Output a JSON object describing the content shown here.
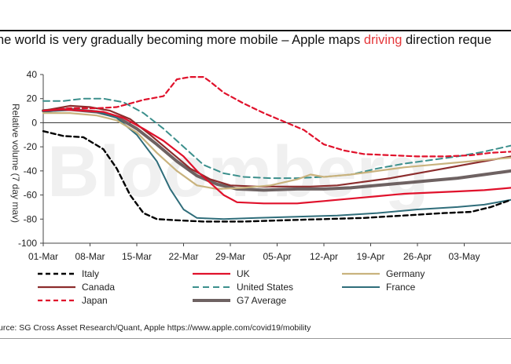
{
  "header": {
    "title_before": "he world is very gradually becoming more mobile – Apple maps ",
    "title_highlight": "driving",
    "title_after": " direction reque"
  },
  "source": "urce: SG Cross Asset Research/Quant, Apple https://www.apple.com/covid19/mobility",
  "watermark": "Bloomberg",
  "colors": {
    "highlight": "#e5383b"
  },
  "chart_data": {
    "type": "line",
    "title": "",
    "ylabel": "Relative volume (7 day mav)",
    "xlabel": "",
    "ylim": [
      -100,
      40
    ],
    "yticks": [
      40,
      20,
      0,
      -20,
      -40,
      -60,
      -80,
      -100
    ],
    "xlim": [
      0,
      70
    ],
    "xticks": [
      {
        "x": 0,
        "label": "01-Mar"
      },
      {
        "x": 7,
        "label": "08-Mar"
      },
      {
        "x": 14,
        "label": "15-Mar"
      },
      {
        "x": 21,
        "label": "22-Mar"
      },
      {
        "x": 28,
        "label": "29-Mar"
      },
      {
        "x": 35,
        "label": "05-Apr"
      },
      {
        "x": 42,
        "label": "12-Apr"
      },
      {
        "x": 49,
        "label": "19-Apr"
      },
      {
        "x": 56,
        "label": "26-Apr"
      },
      {
        "x": 63,
        "label": "03-May"
      }
    ],
    "x_axis_note": "x values are days counted from 01-Mar",
    "series": [
      {
        "name": "Italy",
        "color": "#000000",
        "dash": "6,4",
        "width": 2.4,
        "points": [
          [
            0,
            -7
          ],
          [
            3,
            -11
          ],
          [
            6,
            -12
          ],
          [
            9,
            -22
          ],
          [
            11,
            -38
          ],
          [
            13,
            -60
          ],
          [
            15,
            -75
          ],
          [
            17,
            -80
          ],
          [
            20,
            -81
          ],
          [
            24,
            -82
          ],
          [
            30,
            -82
          ],
          [
            36,
            -81
          ],
          [
            42,
            -80
          ],
          [
            48,
            -79
          ],
          [
            54,
            -77
          ],
          [
            60,
            -75
          ],
          [
            64,
            -74
          ],
          [
            67,
            -70
          ],
          [
            70,
            -64
          ]
        ]
      },
      {
        "name": "UK",
        "color": "#e0112b",
        "dash": "",
        "width": 2.2,
        "points": [
          [
            0,
            10
          ],
          [
            3,
            11
          ],
          [
            6,
            10
          ],
          [
            9,
            9
          ],
          [
            12,
            4
          ],
          [
            15,
            -5
          ],
          [
            18,
            -15
          ],
          [
            21,
            -28
          ],
          [
            23,
            -40
          ],
          [
            25,
            -50
          ],
          [
            27,
            -60
          ],
          [
            29,
            -66
          ],
          [
            33,
            -67
          ],
          [
            38,
            -67
          ],
          [
            42,
            -65
          ],
          [
            46,
            -63
          ],
          [
            50,
            -61
          ],
          [
            54,
            -59
          ],
          [
            58,
            -58
          ],
          [
            62,
            -57
          ],
          [
            66,
            -56
          ],
          [
            70,
            -54
          ]
        ]
      },
      {
        "name": "Germany",
        "color": "#c9b37e",
        "dash": "",
        "width": 2.2,
        "points": [
          [
            0,
            8
          ],
          [
            4,
            8
          ],
          [
            8,
            6
          ],
          [
            11,
            2
          ],
          [
            14,
            -8
          ],
          [
            17,
            -25
          ],
          [
            20,
            -40
          ],
          [
            23,
            -52
          ],
          [
            26,
            -55
          ],
          [
            30,
            -54
          ],
          [
            34,
            -52
          ],
          [
            38,
            -47
          ],
          [
            40,
            -43
          ],
          [
            42,
            -45
          ],
          [
            46,
            -43
          ],
          [
            50,
            -40
          ],
          [
            54,
            -37
          ],
          [
            58,
            -35
          ],
          [
            62,
            -33
          ],
          [
            66,
            -31
          ],
          [
            70,
            -29
          ]
        ]
      },
      {
        "name": "Canada",
        "color": "#8c2d2d",
        "dash": "",
        "width": 2.2,
        "points": [
          [
            0,
            10
          ],
          [
            4,
            14
          ],
          [
            7,
            13
          ],
          [
            10,
            10
          ],
          [
            13,
            3
          ],
          [
            16,
            -10
          ],
          [
            19,
            -24
          ],
          [
            22,
            -38
          ],
          [
            25,
            -47
          ],
          [
            28,
            -52
          ],
          [
            32,
            -53
          ],
          [
            36,
            -53
          ],
          [
            40,
            -53
          ],
          [
            44,
            -52
          ],
          [
            48,
            -49
          ],
          [
            52,
            -46
          ],
          [
            56,
            -42
          ],
          [
            60,
            -38
          ],
          [
            64,
            -34
          ],
          [
            67,
            -31
          ],
          [
            70,
            -28
          ]
        ]
      },
      {
        "name": "United States",
        "color": "#3b8f8c",
        "dash": "8,5",
        "width": 2.0,
        "points": [
          [
            0,
            18
          ],
          [
            3,
            18
          ],
          [
            6,
            20
          ],
          [
            9,
            20
          ],
          [
            12,
            17
          ],
          [
            15,
            8
          ],
          [
            18,
            -5
          ],
          [
            21,
            -20
          ],
          [
            24,
            -35
          ],
          [
            27,
            -42
          ],
          [
            30,
            -45
          ],
          [
            34,
            -46
          ],
          [
            38,
            -46
          ],
          [
            42,
            -45
          ],
          [
            46,
            -43
          ],
          [
            50,
            -38
          ],
          [
            54,
            -34
          ],
          [
            58,
            -31
          ],
          [
            62,
            -28
          ],
          [
            66,
            -24
          ],
          [
            70,
            -19
          ]
        ]
      },
      {
        "name": "France",
        "color": "#2f6d7a",
        "dash": "",
        "width": 2.0,
        "points": [
          [
            0,
            9
          ],
          [
            4,
            11
          ],
          [
            8,
            9
          ],
          [
            11,
            4
          ],
          [
            14,
            -10
          ],
          [
            17,
            -32
          ],
          [
            19,
            -55
          ],
          [
            21,
            -72
          ],
          [
            23,
            -79
          ],
          [
            27,
            -80
          ],
          [
            32,
            -79
          ],
          [
            38,
            -78
          ],
          [
            44,
            -77
          ],
          [
            50,
            -75
          ],
          [
            56,
            -72
          ],
          [
            62,
            -70
          ],
          [
            66,
            -68
          ],
          [
            70,
            -64
          ]
        ]
      },
      {
        "name": "Japan",
        "color": "#e0112b",
        "dash": "6,4",
        "width": 2.2,
        "points": [
          [
            0,
            10
          ],
          [
            4,
            12
          ],
          [
            8,
            12
          ],
          [
            11,
            13
          ],
          [
            13,
            16
          ],
          [
            15,
            19
          ],
          [
            18,
            22
          ],
          [
            20,
            36
          ],
          [
            22,
            38
          ],
          [
            24,
            38
          ],
          [
            25,
            34
          ],
          [
            27,
            25
          ],
          [
            30,
            16
          ],
          [
            33,
            8
          ],
          [
            36,
            1
          ],
          [
            39,
            -6
          ],
          [
            42,
            -18
          ],
          [
            45,
            -23
          ],
          [
            48,
            -26
          ],
          [
            52,
            -27
          ],
          [
            56,
            -28
          ],
          [
            60,
            -28
          ],
          [
            64,
            -27
          ],
          [
            67,
            -25
          ],
          [
            70,
            -24
          ]
        ]
      },
      {
        "name": "G7 Average",
        "color": "#6e6262",
        "dash": "",
        "width": 4.0,
        "points": [
          [
            0,
            10
          ],
          [
            4,
            11
          ],
          [
            8,
            9
          ],
          [
            11,
            5
          ],
          [
            14,
            -5
          ],
          [
            17,
            -18
          ],
          [
            20,
            -32
          ],
          [
            23,
            -44
          ],
          [
            26,
            -51
          ],
          [
            29,
            -55
          ],
          [
            33,
            -56
          ],
          [
            38,
            -55
          ],
          [
            42,
            -55
          ],
          [
            46,
            -54
          ],
          [
            50,
            -52
          ],
          [
            54,
            -50
          ],
          [
            58,
            -48
          ],
          [
            62,
            -46
          ],
          [
            66,
            -43
          ],
          [
            70,
            -40
          ]
        ]
      }
    ],
    "legend": {
      "placement": "bottom",
      "entries": [
        "Italy",
        "UK",
        "Germany",
        "Canada",
        "United States",
        "France",
        "Japan",
        "G7 Average"
      ]
    }
  }
}
